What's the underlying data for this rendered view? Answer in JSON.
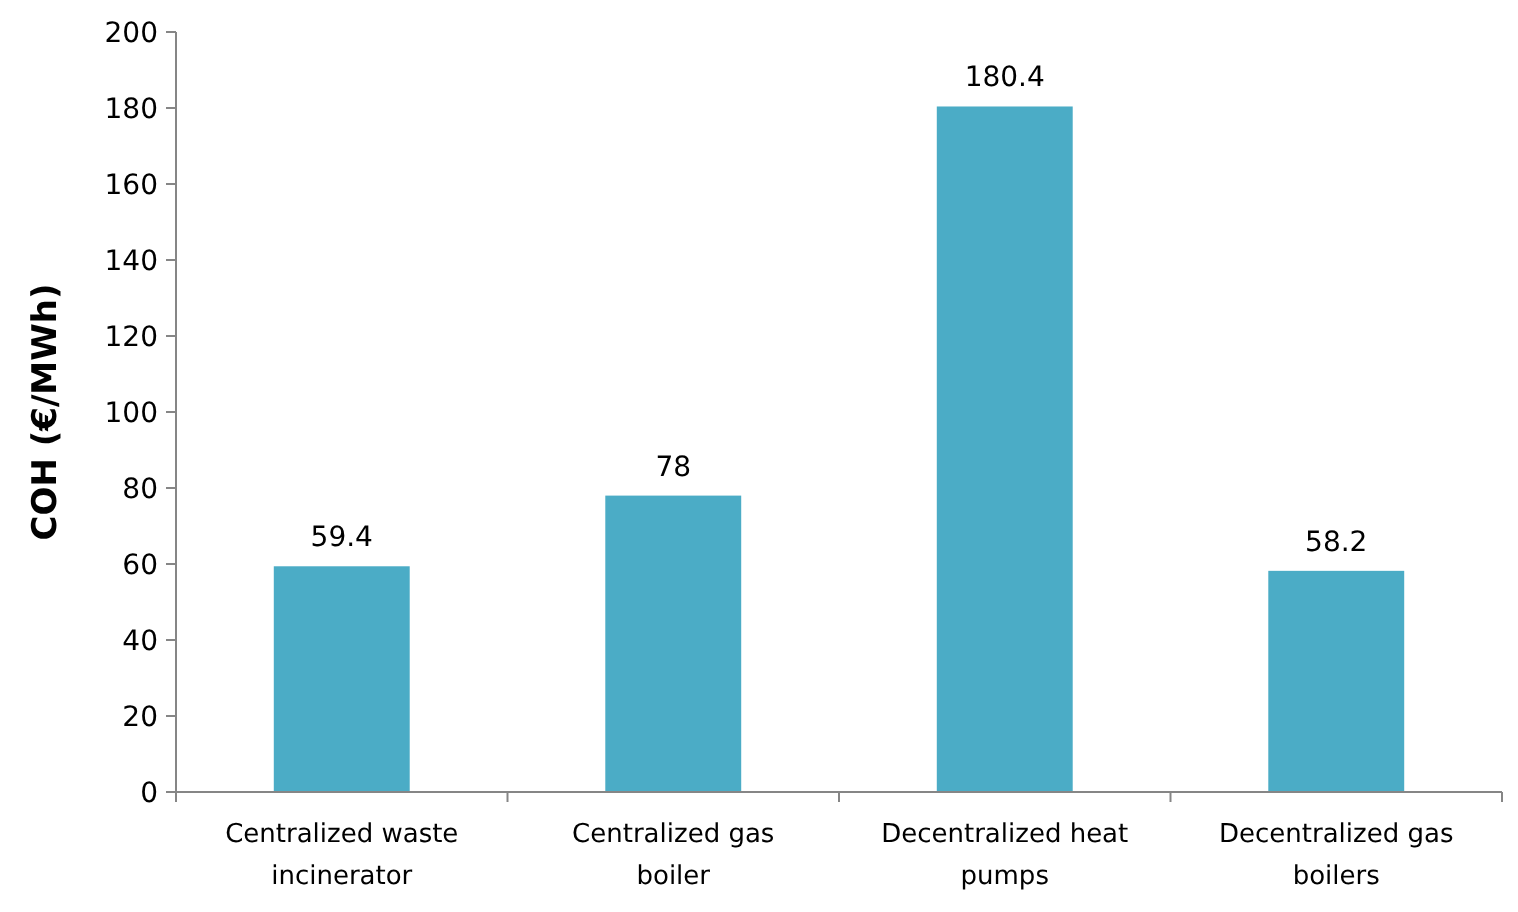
{
  "chart_data": {
    "type": "bar",
    "ylabel": "COH (€/MWh)",
    "categories": [
      "Centralized waste incinerator",
      "Centralized gas boiler",
      "Decentralized heat pumps",
      "Decentralized gas boilers"
    ],
    "values": [
      59.4,
      78,
      180.4,
      58.2
    ],
    "color": "#4bacc6",
    "data_labels": true,
    "ylim": [
      0,
      200
    ],
    "yticks": [
      0,
      20,
      40,
      60,
      80,
      100,
      120,
      140,
      160,
      180,
      200
    ],
    "grid": false
  }
}
